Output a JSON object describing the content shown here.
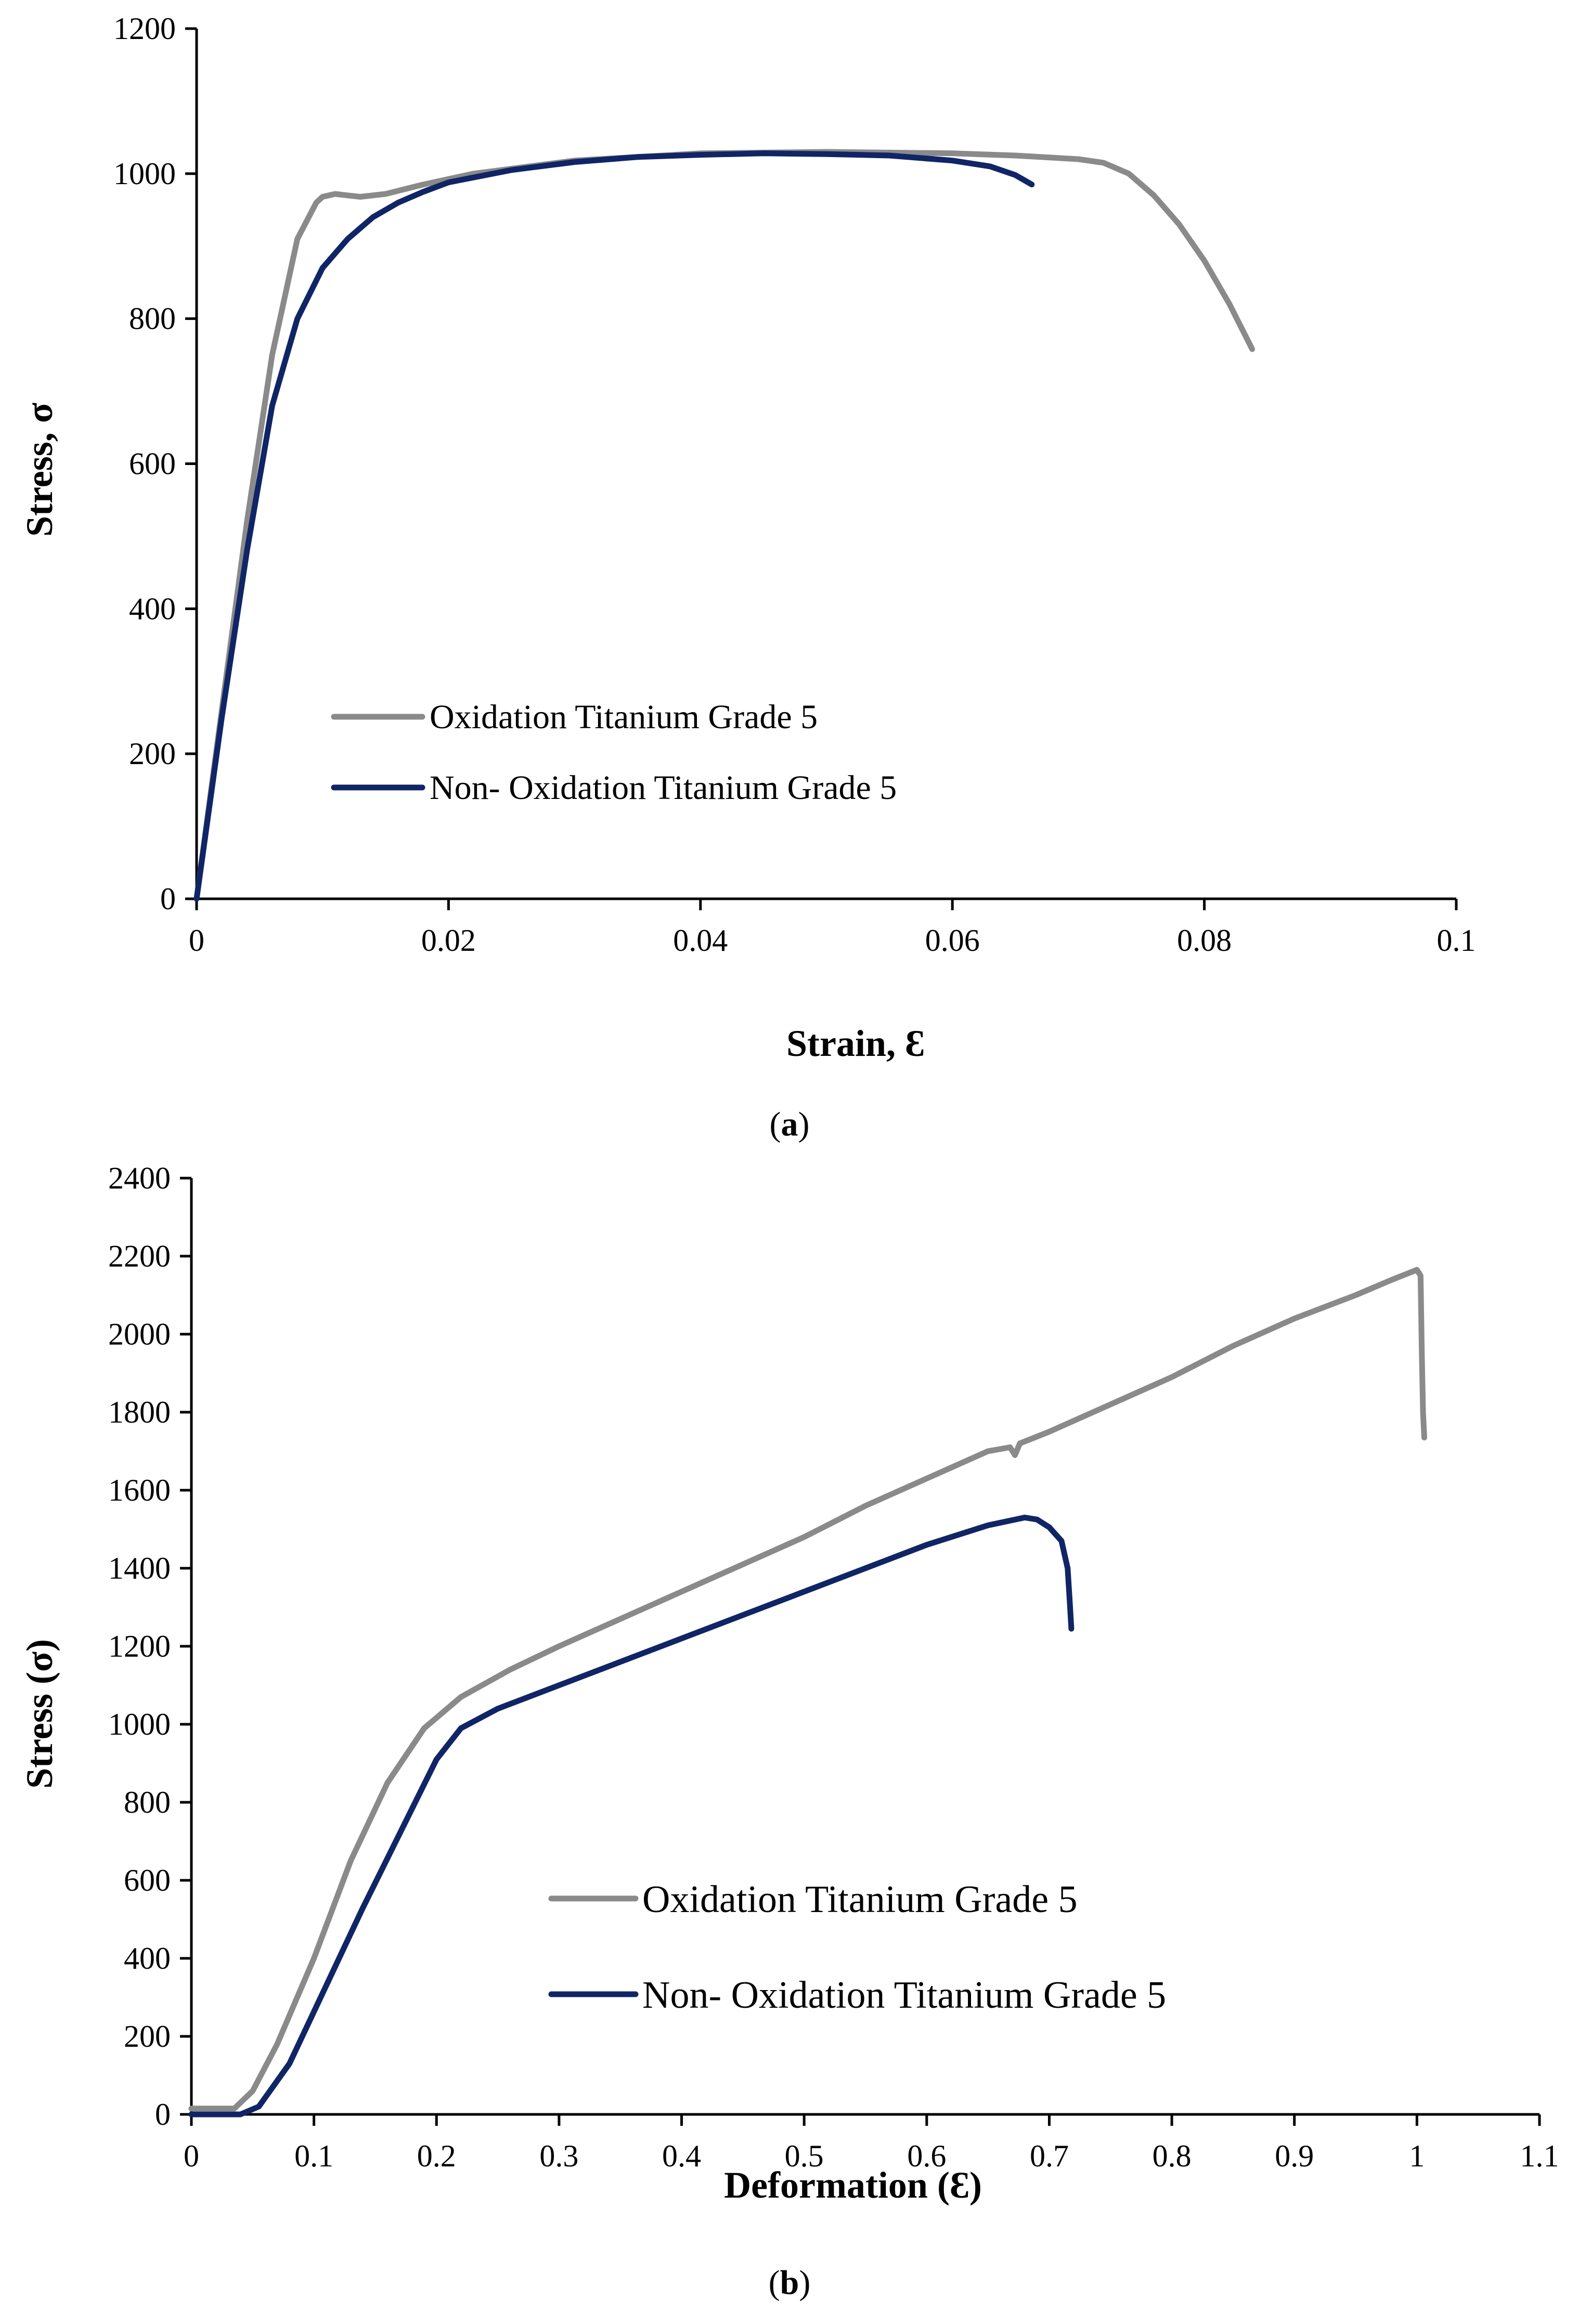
{
  "chart_data": [
    {
      "type": "line",
      "panel": "a",
      "caption_open": "(",
      "caption_letter": "a",
      "caption_close": ")",
      "xlabel": "Strain, Ɛ",
      "ylabel": "Stress, σ",
      "xlim": [
        0,
        0.1
      ],
      "ylim": [
        0,
        1200
      ],
      "xticks": [
        0,
        0.02,
        0.04,
        0.06,
        0.08,
        0.1
      ],
      "xtick_labels": [
        "0",
        "0.02",
        "0.04",
        "0.06",
        "0.08",
        "0.1"
      ],
      "yticks": [
        0,
        200,
        400,
        600,
        800,
        1000,
        1200
      ],
      "ytick_labels": [
        "0",
        "200",
        "400",
        "600",
        "800",
        "1000",
        "1200"
      ],
      "legend_position": "lower-center",
      "series": [
        {
          "name": "Oxidation Titanium Grade 5",
          "color": "#8a8a8a",
          "x": [
            0,
            0.002,
            0.004,
            0.006,
            0.008,
            0.0095,
            0.01,
            0.011,
            0.012,
            0.013,
            0.015,
            0.018,
            0.022,
            0.03,
            0.04,
            0.05,
            0.06,
            0.065,
            0.07,
            0.072,
            0.074,
            0.076,
            0.078,
            0.08,
            0.082,
            0.0838
          ],
          "y": [
            0,
            260,
            520,
            750,
            910,
            960,
            968,
            972,
            970,
            968,
            972,
            985,
            1000,
            1018,
            1028,
            1030,
            1028,
            1025,
            1020,
            1015,
            1000,
            970,
            930,
            880,
            820,
            758
          ]
        },
        {
          "name": "Non- Oxidation Titanium Grade 5",
          "color": "#102565",
          "x": [
            0,
            0.002,
            0.004,
            0.006,
            0.008,
            0.01,
            0.012,
            0.014,
            0.016,
            0.018,
            0.02,
            0.025,
            0.03,
            0.035,
            0.04,
            0.045,
            0.05,
            0.055,
            0.06,
            0.063,
            0.065,
            0.0663
          ],
          "y": [
            0,
            250,
            480,
            680,
            800,
            870,
            910,
            940,
            960,
            975,
            988,
            1005,
            1016,
            1023,
            1026,
            1028,
            1027,
            1025,
            1018,
            1010,
            998,
            985
          ]
        }
      ]
    },
    {
      "type": "line",
      "panel": "b",
      "caption_open": "(",
      "caption_letter": "b",
      "caption_close": ")",
      "xlabel": "Deformation (Ɛ)",
      "ylabel": "Stress (σ)",
      "xlim": [
        0,
        1.1
      ],
      "ylim": [
        0,
        2400
      ],
      "xticks": [
        0,
        0.1,
        0.2,
        0.3,
        0.4,
        0.5,
        0.6,
        0.7,
        0.8,
        0.9,
        1,
        1.1
      ],
      "xtick_labels": [
        "0",
        "0.1",
        "0.2",
        "0.3",
        "0.4",
        "0.5",
        "0.6",
        "0.7",
        "0.8",
        "0.9",
        "1",
        "1.1"
      ],
      "yticks": [
        0,
        200,
        400,
        600,
        800,
        1000,
        1200,
        1400,
        1600,
        1800,
        2000,
        2200,
        2400
      ],
      "ytick_labels": [
        "0",
        "200",
        "400",
        "600",
        "800",
        "1000",
        "1200",
        "1400",
        "1600",
        "1800",
        "2000",
        "2200",
        "2400"
      ],
      "legend_position": "lower-center",
      "series": [
        {
          "name": "Oxidation Titanium Grade 5",
          "color": "#8a8a8a",
          "x": [
            0,
            0.035,
            0.05,
            0.07,
            0.1,
            0.13,
            0.16,
            0.19,
            0.22,
            0.26,
            0.3,
            0.35,
            0.4,
            0.45,
            0.5,
            0.55,
            0.6,
            0.65,
            0.668,
            0.672,
            0.676,
            0.7,
            0.75,
            0.8,
            0.85,
            0.9,
            0.95,
            0.98,
            1.0,
            1.003,
            1.004,
            1.005,
            1.006
          ],
          "y": [
            15,
            15,
            60,
            180,
            400,
            650,
            850,
            990,
            1070,
            1140,
            1200,
            1270,
            1340,
            1410,
            1480,
            1560,
            1630,
            1700,
            1710,
            1690,
            1720,
            1750,
            1820,
            1890,
            1970,
            2040,
            2100,
            2140,
            2165,
            2150,
            1950,
            1800,
            1735
          ]
        },
        {
          "name": "Non- Oxidation Titanium Grade 5",
          "color": "#102565",
          "x": [
            0,
            0.04,
            0.055,
            0.08,
            0.11,
            0.14,
            0.17,
            0.2,
            0.22,
            0.25,
            0.3,
            0.35,
            0.4,
            0.45,
            0.5,
            0.55,
            0.6,
            0.65,
            0.68,
            0.69,
            0.7,
            0.71,
            0.715,
            0.717,
            0.718
          ],
          "y": [
            0,
            0,
            20,
            130,
            330,
            530,
            720,
            910,
            990,
            1040,
            1100,
            1160,
            1220,
            1280,
            1340,
            1400,
            1460,
            1510,
            1530,
            1525,
            1505,
            1470,
            1400,
            1300,
            1245
          ]
        }
      ]
    }
  ]
}
